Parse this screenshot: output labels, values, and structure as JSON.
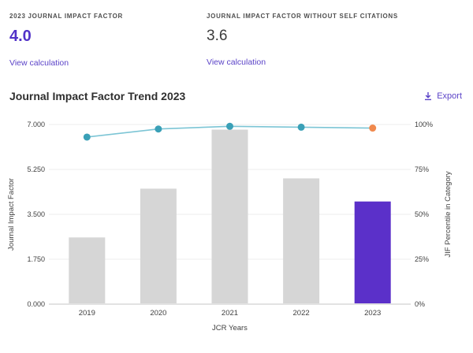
{
  "metrics": [
    {
      "label": "2023 JOURNAL IMPACT FACTOR",
      "value": "4.0",
      "link_label": "View calculation"
    },
    {
      "label": "JOURNAL IMPACT FACTOR WITHOUT SELF CITATIONS",
      "value": "3.6",
      "link_label": "View calculation"
    }
  ],
  "trend_section": {
    "title": "Journal Impact Factor Trend 2023",
    "export_label": "Export",
    "export_icon": "download-icon"
  },
  "chart_data": {
    "type": "bar",
    "subtype": "combo-bar-line",
    "title": "Journal Impact Factor Trend 2023",
    "categories": [
      "2019",
      "2020",
      "2021",
      "2022",
      "2023"
    ],
    "series": [
      {
        "name": "Journal Impact Factor",
        "type": "bar",
        "axis": "left",
        "values": [
          2.6,
          4.5,
          6.8,
          4.9,
          4.0
        ]
      },
      {
        "name": "JIF Percentile in Category",
        "type": "line",
        "axis": "right",
        "values": [
          93,
          97.5,
          99,
          98.5,
          98
        ]
      }
    ],
    "xlabel": "JCR Years",
    "ylabel_left": "Journal Impact Factor",
    "ylabel_right": "JIF Percentile in Category",
    "yticks_left": [
      "7.000",
      "5.250",
      "3.500",
      "1.750",
      "0.000"
    ],
    "yticks_right": [
      "100%",
      "75%",
      "50%",
      "25%",
      "0%"
    ],
    "ylim_left": [
      0,
      7
    ],
    "ylim_right": [
      0,
      100
    ],
    "grid": true,
    "legend": "none",
    "highlight_index": 4,
    "colors": {
      "bar": "#d6d6d6",
      "bar_highlight": "#5b30c9",
      "line": "#7cc5d5",
      "marker": "#3aa0b7",
      "marker_highlight": "#f0894d",
      "grid": "#ececec",
      "baseline": "#d9d9d9",
      "tick_text": "#3f3f3f"
    }
  },
  "colors": {
    "accent_purple": "#5b43c8",
    "value_purple": "#5132c8",
    "value_dark": "#3b3b3b",
    "label_gray": "#4f4f4f",
    "title_dark": "#2f2f2f"
  }
}
